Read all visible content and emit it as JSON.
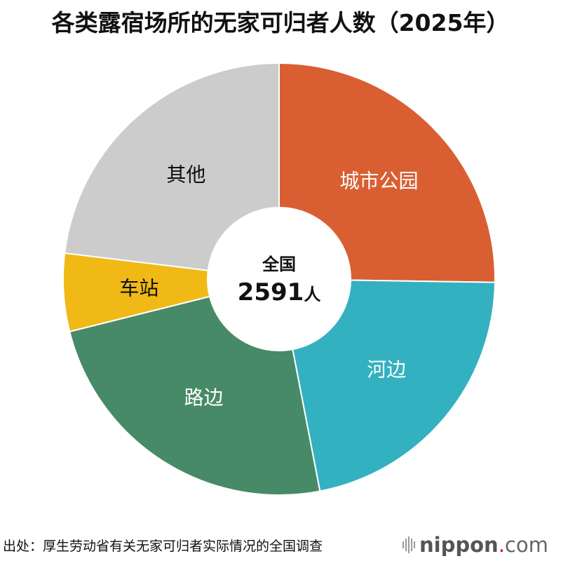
{
  "title": "各类露宿场所的无家可归者人数（2025年）",
  "chart_data": {
    "type": "pie",
    "donut": true,
    "title": "各类露宿场所的无家可归者人数（2025年）",
    "categories": [
      "城市公园",
      "河边",
      "路边",
      "车站",
      "其他"
    ],
    "values": [
      654,
      563,
      625,
      151,
      598
    ],
    "colors": [
      "#d95f33",
      "#33b1c0",
      "#478a67",
      "#f0b915",
      "#cccccc"
    ],
    "label_colors": [
      "#ffffff",
      "#ffffff",
      "#ffffff",
      "#111111",
      "#111111"
    ],
    "center_label": "全国",
    "center_value": "2591",
    "center_unit": "人"
  },
  "footer": {
    "source": "出处：厚生劳动省有关无家可归者实际情况的全国调查",
    "logo": {
      "name": "nippon",
      "dot": ".",
      "suffix": "com"
    }
  }
}
